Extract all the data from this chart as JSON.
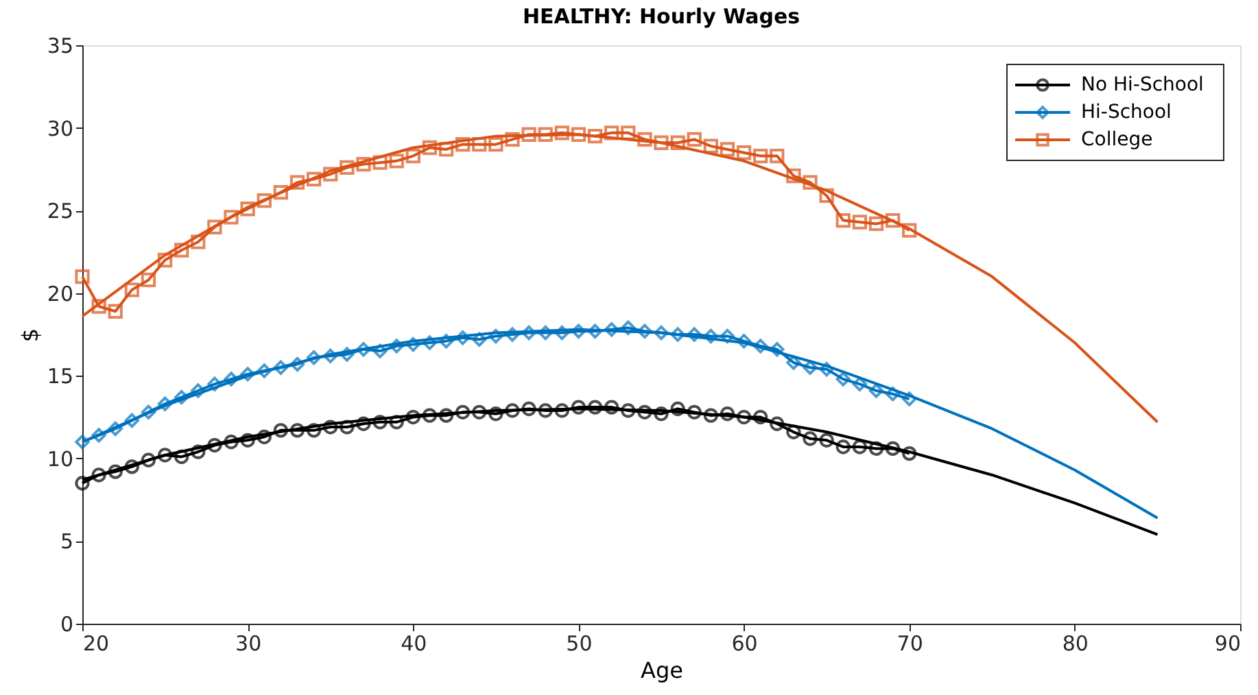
{
  "chart_data": {
    "type": "line",
    "title": "HEALTHY: Hourly Wages",
    "xlabel": "Age",
    "ylabel": "$",
    "xlim": [
      20,
      90
    ],
    "xticks": [
      20,
      30,
      40,
      50,
      60,
      70,
      80,
      90
    ],
    "ylim": [
      0,
      35
    ],
    "yticks": [
      0,
      5,
      10,
      15,
      20,
      25,
      30,
      35
    ],
    "grid": false,
    "legend": "top right",
    "line_style": "solid",
    "series": [
      {
        "name": "No Hi-School",
        "color": "#000000",
        "marker": "circle",
        "x": [
          20,
          21,
          22,
          23,
          24,
          25,
          26,
          27,
          28,
          29,
          30,
          31,
          32,
          33,
          34,
          35,
          36,
          37,
          38,
          39,
          40,
          41,
          42,
          43,
          44,
          45,
          46,
          47,
          48,
          49,
          50,
          51,
          52,
          53,
          54,
          55,
          56,
          57,
          58,
          59,
          60,
          61,
          62,
          63,
          64,
          65,
          66,
          67,
          68,
          69,
          70
        ],
        "values": [
          8.5,
          9.0,
          9.2,
          9.5,
          9.9,
          10.2,
          10.1,
          10.4,
          10.8,
          11.0,
          11.1,
          11.3,
          11.7,
          11.7,
          11.7,
          11.9,
          11.9,
          12.1,
          12.2,
          12.2,
          12.5,
          12.6,
          12.6,
          12.8,
          12.8,
          12.7,
          12.9,
          13.0,
          12.9,
          12.9,
          13.1,
          13.1,
          13.1,
          12.9,
          12.8,
          12.7,
          13.0,
          12.8,
          12.6,
          12.7,
          12.5,
          12.5,
          12.1,
          11.6,
          11.2,
          11.1,
          10.7,
          10.7,
          10.6,
          10.6,
          10.3
        ]
      },
      {
        "name": "Hi-School",
        "color": "#0072bd",
        "marker": "diamond",
        "x": [
          20,
          21,
          22,
          23,
          24,
          25,
          26,
          27,
          28,
          29,
          30,
          31,
          32,
          33,
          34,
          35,
          36,
          37,
          38,
          39,
          40,
          41,
          42,
          43,
          44,
          45,
          46,
          47,
          48,
          49,
          50,
          51,
          52,
          53,
          54,
          55,
          56,
          57,
          58,
          59,
          60,
          61,
          62,
          63,
          64,
          65,
          66,
          67,
          68,
          69,
          70
        ],
        "values": [
          11.0,
          11.4,
          11.8,
          12.3,
          12.8,
          13.3,
          13.7,
          14.1,
          14.5,
          14.8,
          15.1,
          15.3,
          15.5,
          15.7,
          16.1,
          16.2,
          16.3,
          16.6,
          16.5,
          16.8,
          16.9,
          17.0,
          17.1,
          17.3,
          17.2,
          17.4,
          17.5,
          17.6,
          17.6,
          17.6,
          17.7,
          17.7,
          17.8,
          17.9,
          17.7,
          17.6,
          17.5,
          17.5,
          17.4,
          17.4,
          17.1,
          16.8,
          16.6,
          15.8,
          15.5,
          15.4,
          14.8,
          14.5,
          14.1,
          13.9,
          13.6
        ]
      },
      {
        "name": "College",
        "color": "#d95319",
        "marker": "square",
        "x": [
          20,
          21,
          22,
          23,
          24,
          25,
          26,
          27,
          28,
          29,
          30,
          31,
          32,
          33,
          34,
          35,
          36,
          37,
          38,
          39,
          40,
          41,
          42,
          43,
          44,
          45,
          46,
          47,
          48,
          49,
          50,
          51,
          52,
          53,
          54,
          55,
          56,
          57,
          58,
          59,
          60,
          61,
          62,
          63,
          64,
          65,
          66,
          67,
          68,
          69,
          70
        ],
        "values": [
          21.0,
          19.2,
          18.9,
          20.2,
          20.8,
          22.0,
          22.6,
          23.1,
          24.0,
          24.6,
          25.1,
          25.6,
          26.1,
          26.7,
          26.9,
          27.2,
          27.6,
          27.8,
          27.9,
          28.0,
          28.3,
          28.8,
          28.7,
          29.0,
          29.0,
          29.0,
          29.3,
          29.6,
          29.6,
          29.7,
          29.6,
          29.5,
          29.7,
          29.7,
          29.3,
          29.1,
          29.1,
          29.3,
          28.9,
          28.7,
          28.5,
          28.3,
          28.3,
          27.1,
          26.7,
          25.9,
          24.4,
          24.3,
          24.2,
          24.4,
          23.8
        ]
      },
      {
        "color": "#000000",
        "marker": "none",
        "x": [
          20,
          25,
          30,
          35,
          40,
          45,
          50,
          55,
          60,
          65,
          70,
          75,
          80,
          85
        ],
        "values": [
          8.7,
          10.2,
          11.3,
          12.1,
          12.6,
          12.9,
          13.0,
          12.9,
          12.5,
          11.6,
          10.4,
          9.0,
          7.3,
          5.4
        ]
      },
      {
        "color": "#0072bd",
        "marker": "none",
        "x": [
          20,
          25,
          30,
          35,
          40,
          45,
          50,
          55,
          60,
          65,
          70,
          75,
          80,
          85
        ],
        "values": [
          11.0,
          13.2,
          15.0,
          16.3,
          17.1,
          17.6,
          17.8,
          17.6,
          17.0,
          15.6,
          13.8,
          11.8,
          9.3,
          6.4
        ]
      },
      {
        "color": "#d95319",
        "marker": "none",
        "x": [
          20,
          25,
          30,
          35,
          40,
          45,
          50,
          55,
          60,
          65,
          70,
          75,
          80,
          85
        ],
        "values": [
          18.6,
          22.3,
          25.2,
          27.4,
          28.8,
          29.5,
          29.6,
          29.1,
          28.0,
          26.2,
          23.9,
          21.0,
          17.0,
          12.2
        ]
      }
    ]
  }
}
